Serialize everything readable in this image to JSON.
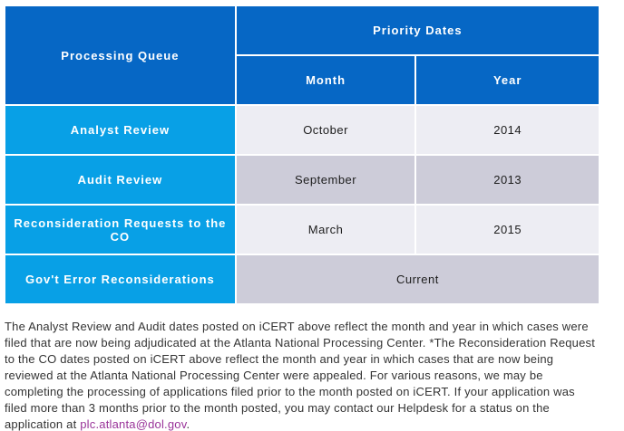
{
  "table": {
    "header": {
      "processing_queue": "Processing Queue",
      "priority_dates": "Priority Dates",
      "month": "Month",
      "year": "Year"
    },
    "rows": [
      {
        "queue": "Analyst Review",
        "month": "October",
        "year": "2014"
      },
      {
        "queue": "Audit Review",
        "month": "September",
        "year": "2013"
      },
      {
        "queue": "Reconsideration Requests to the CO",
        "month": "March",
        "year": "2015"
      },
      {
        "queue": "Gov't Error Reconsiderations",
        "span": "Current"
      }
    ]
  },
  "footnote": {
    "text_before_link": "The Analyst Review and Audit dates posted on iCERT above reflect the month and year in which cases were filed that are now being adjudicated at the Atlanta National Processing Center. *The Reconsideration Request to the CO dates posted on iCERT above reflect the month and year in which cases that are now being reviewed at the Atlanta National Processing Center were appealed. For various reasons, we may be completing the processing of applications filed prior to the month posted on iCERT. If your application was filed more than 3 months prior to the month posted, you may contact our Helpdesk for a status on the application at ",
    "link": "plc.atlanta@dol.gov",
    "text_after_link": "."
  },
  "colors": {
    "header_blue": "#0667c5",
    "queue_cyan": "#08a0e6",
    "row_light_gray": "#ededf3",
    "row_dark_gray": "#cdccd9",
    "cell_text": "#1d1d1d",
    "footnote_text": "#333333",
    "link_purple": "#993399",
    "border_white": "#ffffff"
  }
}
